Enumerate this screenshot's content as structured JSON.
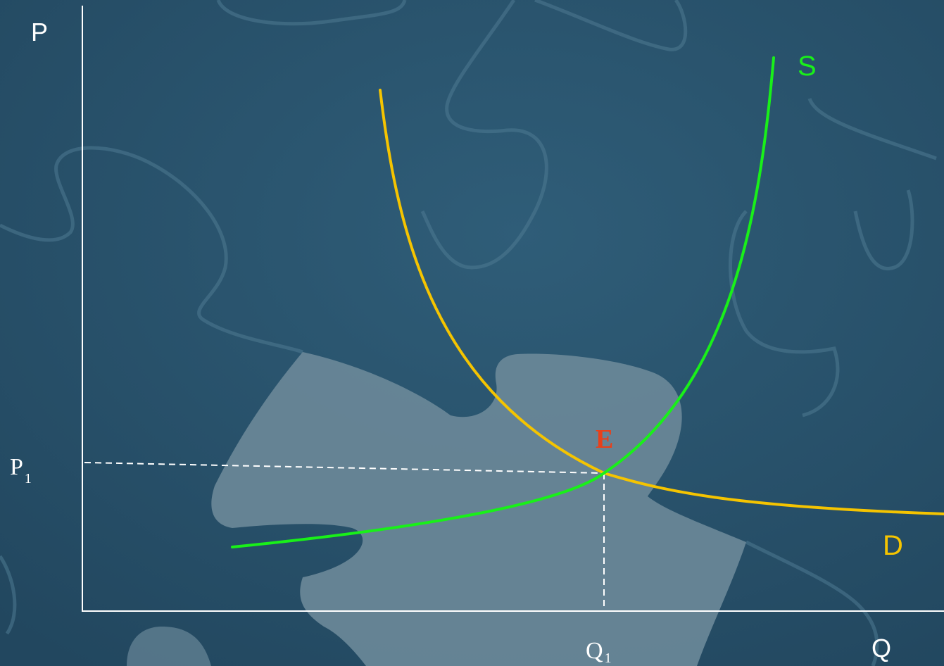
{
  "axes": {
    "y_label": "P",
    "x_label": "Q"
  },
  "curves": {
    "supply": {
      "label": "S",
      "color": "#19f019"
    },
    "demand": {
      "label": "D",
      "color": "#f5c400"
    }
  },
  "equilibrium": {
    "label": "E",
    "color": "#e8401a",
    "price_label": {
      "base": "P",
      "sub": "1"
    },
    "quantity_label": {
      "base": "Q",
      "sub": "1"
    }
  },
  "colors": {
    "background": "#2c5570",
    "puzzle_light": "#6a8898",
    "axis": "#ffffff"
  }
}
